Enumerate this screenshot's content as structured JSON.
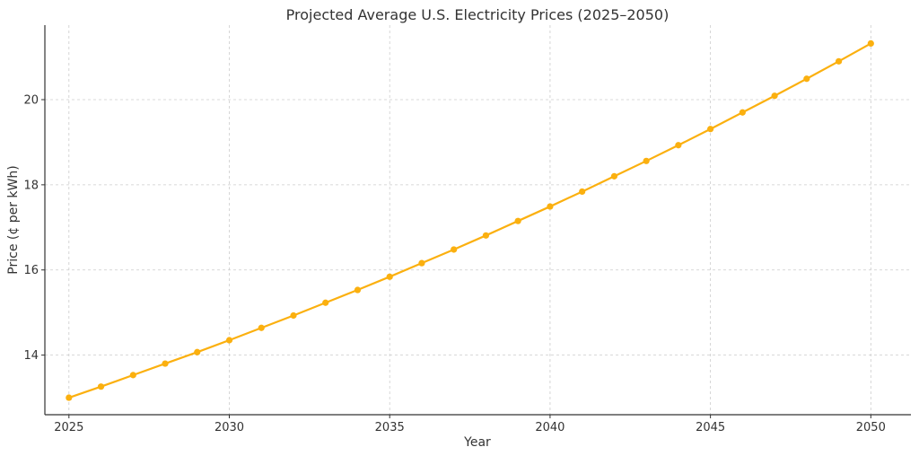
{
  "chart_data": {
    "type": "line",
    "title": "Projected Average U.S. Electricity Prices (2025–2050)",
    "xlabel": "Year",
    "ylabel": "Price (¢ per kWh)",
    "xlim": [
      2024.25,
      2051.25
    ],
    "ylim": [
      12.6,
      21.75
    ],
    "xticks": [
      2025,
      2030,
      2035,
      2040,
      2045,
      2050
    ],
    "yticks": [
      14,
      16,
      18,
      20
    ],
    "grid": true,
    "color": "#FBB00F",
    "series": [
      {
        "x": [
          2025,
          2026,
          2027,
          2028,
          2029,
          2030,
          2031,
          2032,
          2033,
          2034,
          2035,
          2036,
          2037,
          2038,
          2039,
          2040,
          2041,
          2042,
          2043,
          2044,
          2045,
          2046,
          2047,
          2048,
          2049,
          2050
        ],
        "values": [
          13.0,
          13.26,
          13.53,
          13.8,
          14.07,
          14.35,
          14.64,
          14.93,
          15.23,
          15.53,
          15.84,
          16.16,
          16.48,
          16.81,
          17.15,
          17.49,
          17.84,
          18.2,
          18.56,
          18.93,
          19.31,
          19.7,
          20.09,
          20.49,
          20.9,
          21.32
        ]
      }
    ]
  }
}
